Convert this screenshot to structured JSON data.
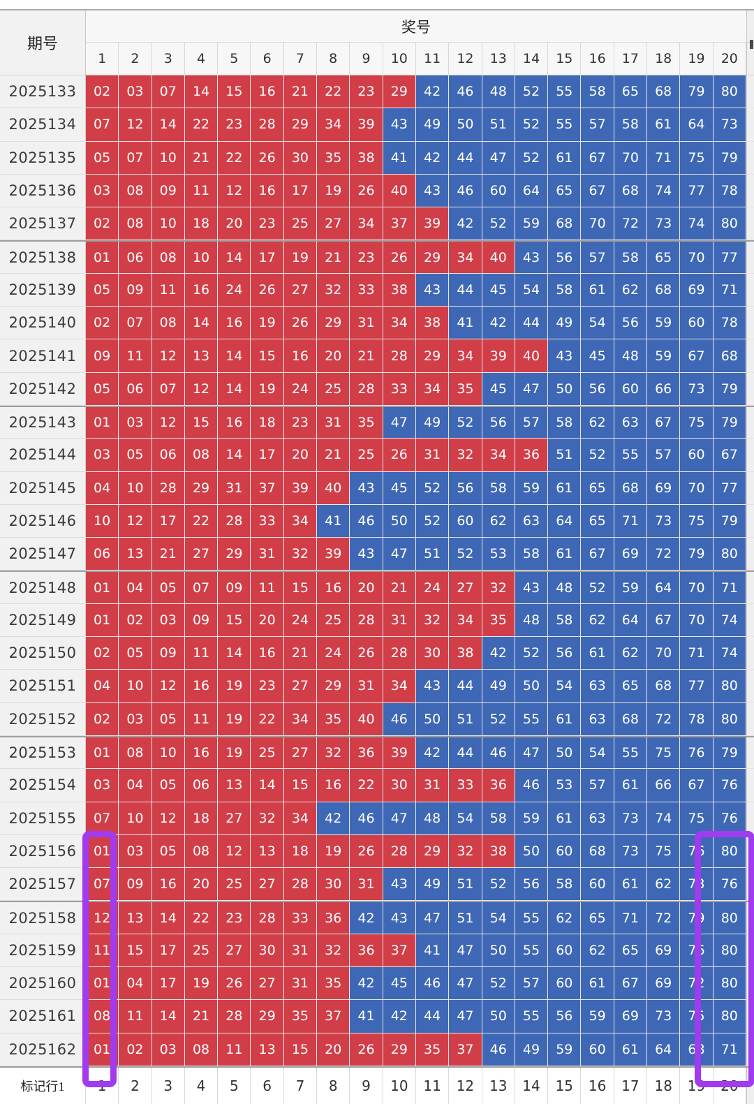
{
  "table": {
    "period_header": "期号",
    "prize_header": "奖号",
    "column_headers": [
      "1",
      "2",
      "3",
      "4",
      "5",
      "6",
      "7",
      "8",
      "9",
      "10",
      "11",
      "12",
      "13",
      "14",
      "15",
      "16",
      "17",
      "18",
      "19",
      "20"
    ],
    "rows": [
      {
        "period": "2025133",
        "numbers": [
          "02",
          "03",
          "07",
          "14",
          "15",
          "16",
          "21",
          "22",
          "23",
          "29",
          "42",
          "46",
          "48",
          "52",
          "55",
          "58",
          "65",
          "68",
          "79",
          "80"
        ]
      },
      {
        "period": "2025134",
        "numbers": [
          "07",
          "12",
          "14",
          "22",
          "23",
          "28",
          "29",
          "34",
          "39",
          "43",
          "49",
          "50",
          "51",
          "52",
          "55",
          "57",
          "58",
          "61",
          "64",
          "73"
        ]
      },
      {
        "period": "2025135",
        "numbers": [
          "05",
          "07",
          "10",
          "21",
          "22",
          "26",
          "30",
          "35",
          "38",
          "41",
          "42",
          "44",
          "47",
          "52",
          "61",
          "67",
          "70",
          "71",
          "75",
          "79"
        ]
      },
      {
        "period": "2025136",
        "numbers": [
          "03",
          "08",
          "09",
          "11",
          "12",
          "16",
          "17",
          "19",
          "26",
          "40",
          "43",
          "46",
          "60",
          "64",
          "65",
          "67",
          "68",
          "74",
          "77",
          "78"
        ]
      },
      {
        "period": "2025137",
        "numbers": [
          "02",
          "08",
          "10",
          "18",
          "20",
          "23",
          "25",
          "27",
          "34",
          "37",
          "39",
          "42",
          "52",
          "59",
          "68",
          "70",
          "72",
          "73",
          "74",
          "80"
        ]
      },
      {
        "period": "2025138",
        "numbers": [
          "01",
          "06",
          "08",
          "10",
          "14",
          "17",
          "19",
          "21",
          "23",
          "26",
          "29",
          "34",
          "40",
          "43",
          "56",
          "57",
          "58",
          "65",
          "70",
          "77"
        ]
      },
      {
        "period": "2025139",
        "numbers": [
          "05",
          "09",
          "11",
          "16",
          "24",
          "26",
          "27",
          "32",
          "33",
          "38",
          "43",
          "44",
          "45",
          "54",
          "58",
          "61",
          "62",
          "68",
          "69",
          "71"
        ]
      },
      {
        "period": "2025140",
        "numbers": [
          "02",
          "07",
          "08",
          "14",
          "16",
          "19",
          "26",
          "29",
          "31",
          "34",
          "38",
          "41",
          "42",
          "44",
          "49",
          "54",
          "56",
          "59",
          "60",
          "78"
        ]
      },
      {
        "period": "2025141",
        "numbers": [
          "09",
          "11",
          "12",
          "13",
          "14",
          "15",
          "16",
          "20",
          "21",
          "28",
          "29",
          "34",
          "39",
          "40",
          "43",
          "45",
          "48",
          "59",
          "67",
          "68"
        ]
      },
      {
        "period": "2025142",
        "numbers": [
          "05",
          "06",
          "07",
          "12",
          "14",
          "19",
          "24",
          "25",
          "28",
          "33",
          "34",
          "35",
          "45",
          "47",
          "50",
          "56",
          "60",
          "66",
          "73",
          "79"
        ]
      },
      {
        "period": "2025143",
        "numbers": [
          "01",
          "03",
          "12",
          "15",
          "16",
          "18",
          "23",
          "31",
          "35",
          "47",
          "49",
          "52",
          "56",
          "57",
          "58",
          "62",
          "63",
          "67",
          "75",
          "79"
        ]
      },
      {
        "period": "2025144",
        "numbers": [
          "03",
          "05",
          "06",
          "08",
          "14",
          "17",
          "20",
          "21",
          "25",
          "26",
          "31",
          "32",
          "34",
          "36",
          "51",
          "52",
          "55",
          "57",
          "60",
          "67"
        ]
      },
      {
        "period": "2025145",
        "numbers": [
          "04",
          "10",
          "28",
          "29",
          "31",
          "37",
          "39",
          "40",
          "43",
          "45",
          "52",
          "56",
          "58",
          "59",
          "61",
          "65",
          "68",
          "69",
          "70",
          "77"
        ]
      },
      {
        "period": "2025146",
        "numbers": [
          "10",
          "12",
          "17",
          "22",
          "28",
          "33",
          "34",
          "41",
          "46",
          "50",
          "52",
          "60",
          "62",
          "63",
          "64",
          "65",
          "71",
          "73",
          "75",
          "79"
        ]
      },
      {
        "period": "2025147",
        "numbers": [
          "06",
          "13",
          "21",
          "27",
          "29",
          "31",
          "32",
          "39",
          "43",
          "47",
          "51",
          "52",
          "53",
          "58",
          "61",
          "67",
          "69",
          "72",
          "79",
          "80"
        ]
      },
      {
        "period": "2025148",
        "numbers": [
          "01",
          "04",
          "05",
          "07",
          "09",
          "11",
          "15",
          "16",
          "20",
          "21",
          "24",
          "27",
          "32",
          "43",
          "48",
          "52",
          "59",
          "64",
          "70",
          "71"
        ]
      },
      {
        "period": "2025149",
        "numbers": [
          "01",
          "02",
          "03",
          "09",
          "15",
          "20",
          "24",
          "25",
          "28",
          "31",
          "32",
          "34",
          "35",
          "48",
          "58",
          "62",
          "64",
          "67",
          "70",
          "74"
        ]
      },
      {
        "period": "2025150",
        "numbers": [
          "02",
          "05",
          "09",
          "11",
          "14",
          "16",
          "21",
          "24",
          "26",
          "28",
          "30",
          "38",
          "42",
          "52",
          "56",
          "61",
          "62",
          "70",
          "71",
          "74"
        ]
      },
      {
        "period": "2025151",
        "numbers": [
          "04",
          "10",
          "12",
          "16",
          "19",
          "23",
          "27",
          "29",
          "31",
          "34",
          "43",
          "44",
          "49",
          "50",
          "54",
          "63",
          "65",
          "68",
          "77",
          "80"
        ]
      },
      {
        "period": "2025152",
        "numbers": [
          "02",
          "03",
          "05",
          "11",
          "19",
          "22",
          "34",
          "35",
          "40",
          "46",
          "50",
          "51",
          "52",
          "55",
          "61",
          "63",
          "68",
          "72",
          "78",
          "80"
        ]
      },
      {
        "period": "2025153",
        "numbers": [
          "01",
          "08",
          "10",
          "16",
          "19",
          "25",
          "27",
          "32",
          "36",
          "39",
          "42",
          "44",
          "46",
          "47",
          "50",
          "54",
          "55",
          "75",
          "76",
          "79"
        ]
      },
      {
        "period": "2025154",
        "numbers": [
          "03",
          "04",
          "05",
          "06",
          "13",
          "14",
          "15",
          "16",
          "22",
          "30",
          "31",
          "33",
          "36",
          "46",
          "53",
          "57",
          "61",
          "66",
          "67",
          "76"
        ]
      },
      {
        "period": "2025155",
        "numbers": [
          "07",
          "10",
          "12",
          "18",
          "27",
          "32",
          "34",
          "42",
          "46",
          "47",
          "48",
          "54",
          "58",
          "59",
          "61",
          "63",
          "73",
          "74",
          "75",
          "76"
        ]
      },
      {
        "period": "2025156",
        "numbers": [
          "01",
          "03",
          "05",
          "08",
          "12",
          "13",
          "18",
          "19",
          "26",
          "28",
          "29",
          "32",
          "38",
          "50",
          "60",
          "68",
          "73",
          "75",
          "76",
          "80"
        ]
      },
      {
        "period": "2025157",
        "numbers": [
          "07",
          "09",
          "16",
          "20",
          "25",
          "27",
          "28",
          "30",
          "31",
          "43",
          "49",
          "51",
          "52",
          "56",
          "58",
          "60",
          "61",
          "62",
          "73",
          "76"
        ]
      },
      {
        "period": "2025158",
        "numbers": [
          "12",
          "13",
          "14",
          "22",
          "23",
          "28",
          "33",
          "36",
          "42",
          "43",
          "47",
          "51",
          "54",
          "55",
          "62",
          "65",
          "71",
          "72",
          "79",
          "80"
        ]
      },
      {
        "period": "2025159",
        "numbers": [
          "11",
          "15",
          "17",
          "25",
          "27",
          "30",
          "31",
          "32",
          "36",
          "37",
          "41",
          "47",
          "50",
          "55",
          "60",
          "62",
          "65",
          "69",
          "76",
          "80"
        ]
      },
      {
        "period": "2025160",
        "numbers": [
          "01",
          "04",
          "17",
          "19",
          "26",
          "27",
          "31",
          "35",
          "42",
          "45",
          "46",
          "47",
          "52",
          "57",
          "60",
          "61",
          "67",
          "69",
          "72",
          "80"
        ]
      },
      {
        "period": "2025161",
        "numbers": [
          "08",
          "11",
          "14",
          "21",
          "28",
          "29",
          "35",
          "37",
          "41",
          "42",
          "44",
          "47",
          "50",
          "55",
          "56",
          "59",
          "69",
          "73",
          "75",
          "80"
        ]
      },
      {
        "period": "2025162",
        "numbers": [
          "01",
          "02",
          "03",
          "08",
          "11",
          "13",
          "15",
          "20",
          "26",
          "29",
          "35",
          "37",
          "46",
          "49",
          "59",
          "60",
          "61",
          "64",
          "68",
          "71"
        ]
      }
    ],
    "marker_row": {
      "label": "标记行1",
      "cells": [
        "1",
        "2",
        "3",
        "4",
        "5",
        "6",
        "7",
        "8",
        "9",
        "10",
        "11",
        "12",
        "13",
        "14",
        "15",
        "16",
        "17",
        "18",
        "19",
        "20"
      ]
    }
  },
  "rules": {
    "red_max": 40,
    "thick_separator_every_rows": 5
  },
  "colors": {
    "red_ball": "#d23e48",
    "blue_ball": "#3e68b5",
    "highlight_purple": "#a03bf0",
    "period_bg": "#f1f1f1",
    "header_bg": "#f7f7f7",
    "grid_line": "#d8d8d8",
    "thick_line": "#9e9e9e",
    "side_strip": "#efefef"
  },
  "highlights": [
    {
      "name": "column-1-highlight",
      "column": "1",
      "from_period": "2025156",
      "to_period": "2025162"
    },
    {
      "name": "column-20-highlight",
      "column": "20",
      "from_period": "2025156",
      "to_period": "2025162"
    }
  ]
}
